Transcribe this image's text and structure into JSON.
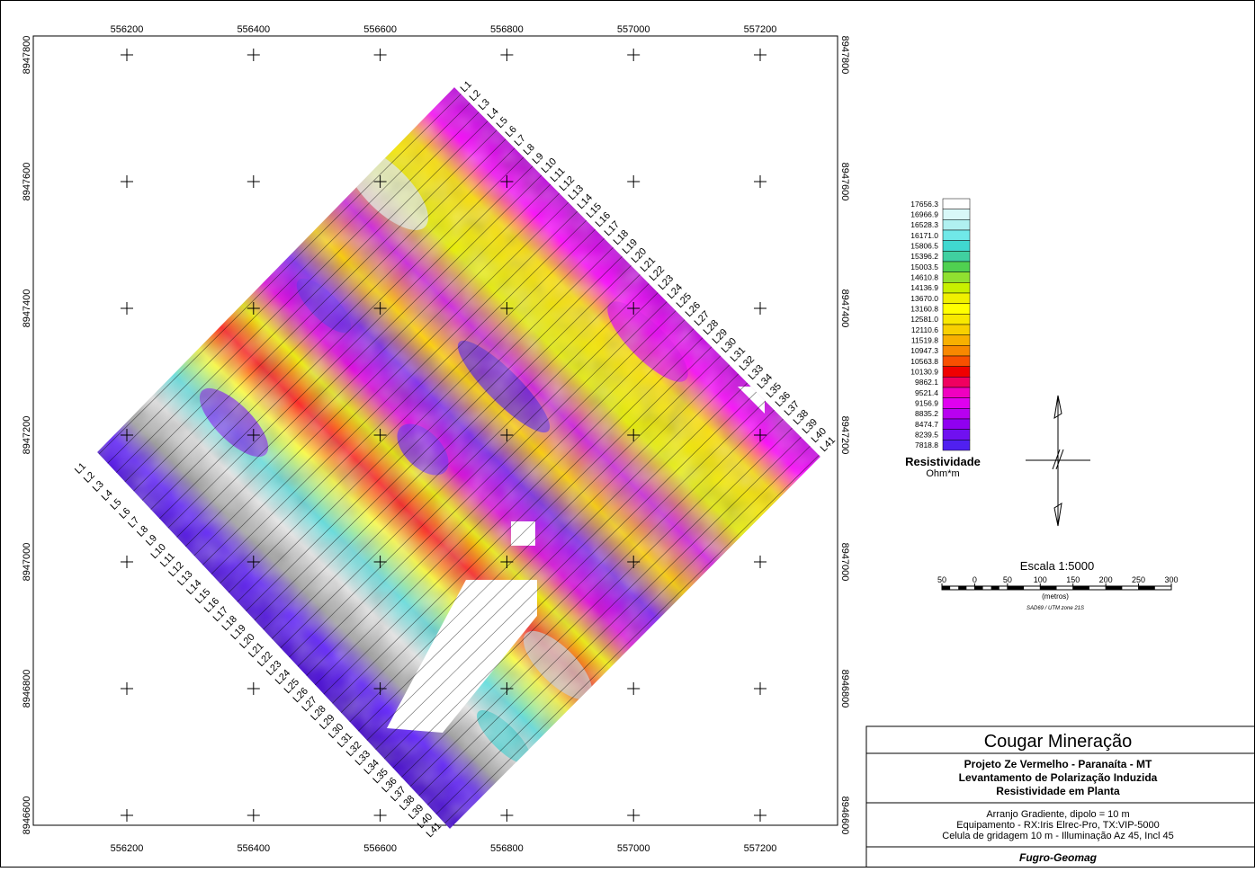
{
  "map": {
    "x_ticks": [
      "556200",
      "556400",
      "556600",
      "556800",
      "557000",
      "557200"
    ],
    "y_ticks": [
      "8947800",
      "8947600",
      "8947400",
      "8947200",
      "8947000",
      "8946800",
      "8946600"
    ],
    "lines": [
      "L1",
      "L2",
      "L3",
      "L4",
      "L5",
      "L6",
      "L7",
      "L8",
      "L9",
      "L10",
      "L11",
      "L12",
      "L13",
      "L14",
      "L15",
      "L16",
      "L17",
      "L18",
      "L19",
      "L20",
      "L21",
      "L22",
      "L23",
      "L24",
      "L25",
      "L26",
      "L27",
      "L28",
      "L29",
      "L30",
      "L31",
      "L32",
      "L33",
      "L34",
      "L35",
      "L36",
      "L37",
      "L38",
      "L39",
      "L40",
      "L41"
    ]
  },
  "legend": {
    "title": "Resistividade",
    "unit": "Ohm*m",
    "items": [
      {
        "label": "17656.3",
        "color": "#ffffff"
      },
      {
        "label": "16966.9",
        "color": "#d8f8f8"
      },
      {
        "label": "16528.3",
        "color": "#b0f0f0"
      },
      {
        "label": "16171.0",
        "color": "#70e8e8"
      },
      {
        "label": "15806.5",
        "color": "#40d8d0"
      },
      {
        "label": "15396.2",
        "color": "#40d0a0"
      },
      {
        "label": "15003.5",
        "color": "#50d050"
      },
      {
        "label": "14610.8",
        "color": "#90e030"
      },
      {
        "label": "14136.9",
        "color": "#c8f000"
      },
      {
        "label": "13670.0",
        "color": "#f0f000"
      },
      {
        "label": "13160.8",
        "color": "#ffff00"
      },
      {
        "label": "12581.0",
        "color": "#f8e800"
      },
      {
        "label": "12110.6",
        "color": "#f8d000"
      },
      {
        "label": "11519.8",
        "color": "#f8b000"
      },
      {
        "label": "10947.3",
        "color": "#f88800"
      },
      {
        "label": "10563.8",
        "color": "#f85000"
      },
      {
        "label": "10130.9",
        "color": "#f00000"
      },
      {
        "label": "9862.1",
        "color": "#f00060"
      },
      {
        "label": "9521.4",
        "color": "#f000c0"
      },
      {
        "label": "9156.9",
        "color": "#e000f0"
      },
      {
        "label": "8835.2",
        "color": "#b800f0"
      },
      {
        "label": "8474.7",
        "color": "#9000f0"
      },
      {
        "label": "8239.5",
        "color": "#7010f0"
      },
      {
        "label": "7818.8",
        "color": "#5020f0"
      }
    ]
  },
  "scale": {
    "title": "Escala 1:5000",
    "ticks": [
      "50",
      "0",
      "50",
      "100",
      "150",
      "200",
      "250",
      "300"
    ],
    "unit": "(metros)",
    "datum": "SAD69 / UTM zone 21S"
  },
  "title_block": {
    "company": "Cougar Mineração",
    "project": [
      "Projeto Ze Vermelho - Paranaíta - MT",
      "Levantamento de Polarização Induzida",
      "Resistividade em Planta"
    ],
    "details": [
      "Arranjo Gradiente, dipolo = 10 m",
      "Equipamento -  RX:Iris Elrec-Pro, TX:VIP-5000",
      "Celula de gridagem 10 m - Illuminação Az 45, Incl 45"
    ],
    "footer": "Fugro-Geomag"
  }
}
